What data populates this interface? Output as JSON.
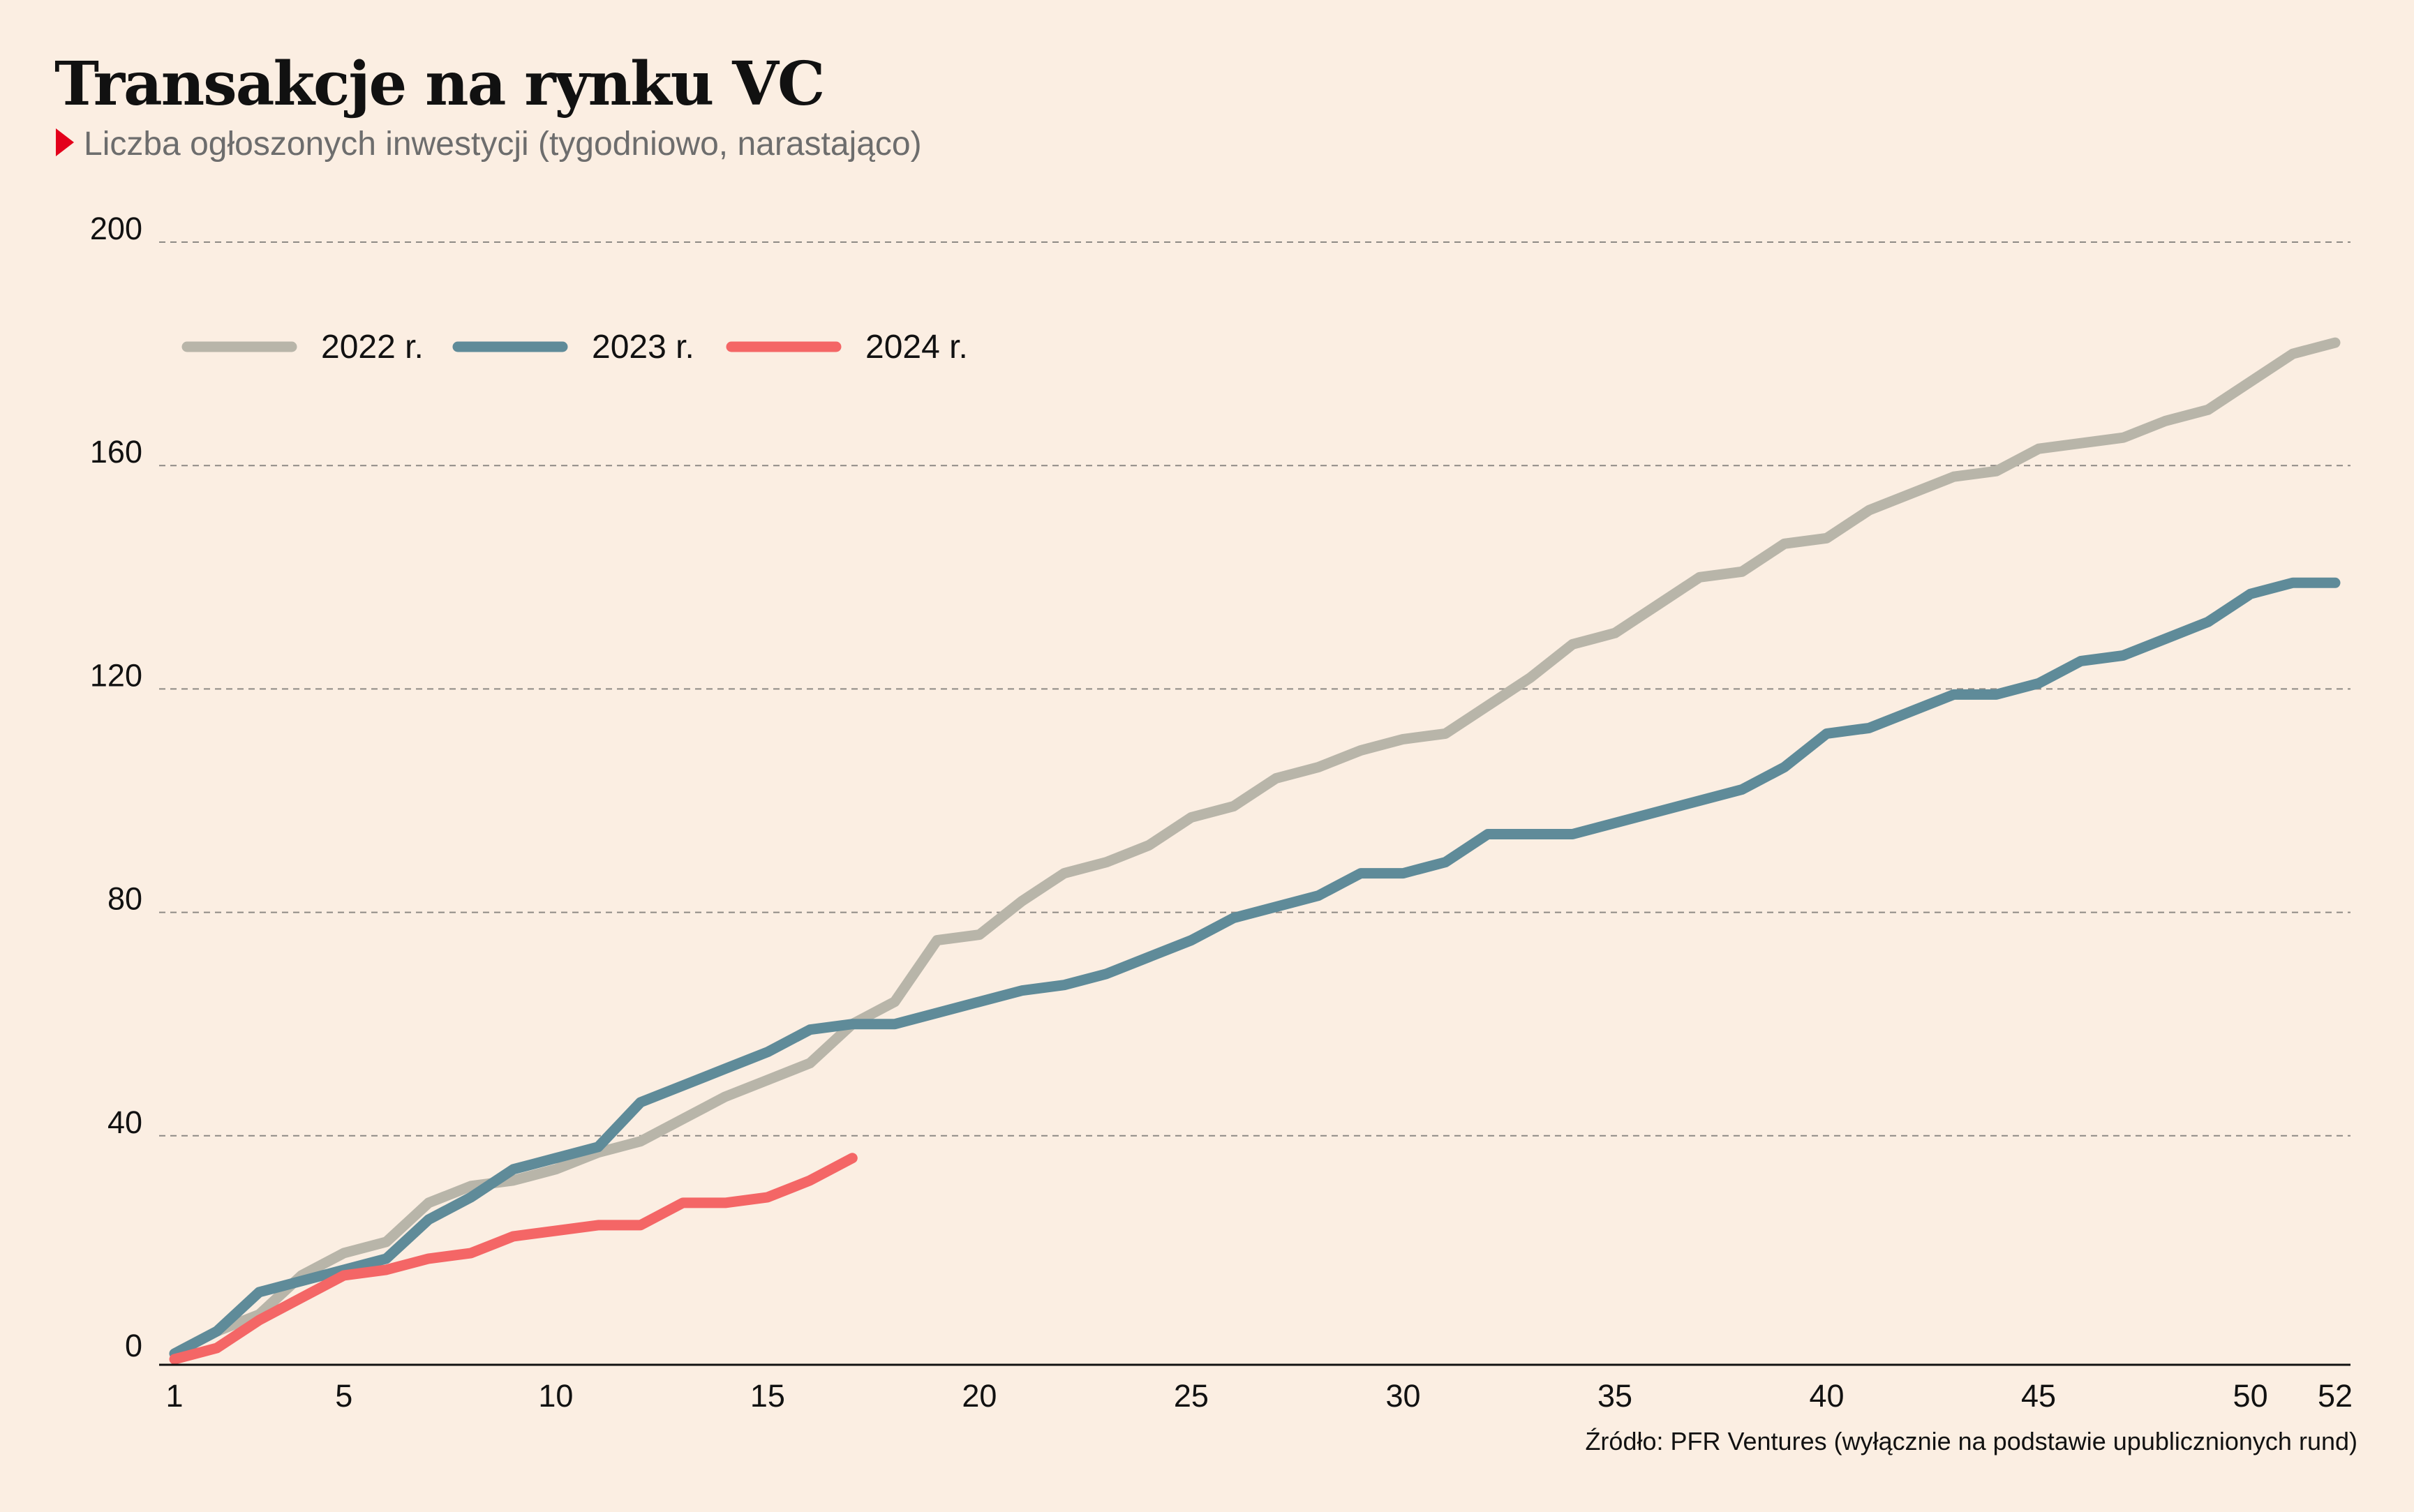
{
  "header": {
    "title": "Transakcje na rynku VC",
    "subtitle": "Liczba ogłoszonych inwestycji (tygodniowo, narastająco)"
  },
  "source": "Źródło: PFR Ventures (wyłącznie na podstawie upublicznionych rund)",
  "colors": {
    "background": "#fbeee2",
    "accent": "#e3001b",
    "series_2022": "#b8b5a9",
    "series_2023": "#5f8b99",
    "series_2024": "#f46666"
  },
  "chart_data": {
    "type": "line",
    "title": "Transakcje na rynku VC",
    "subtitle": "Liczba ogłoszonych inwestycji (tygodniowo, narastająco)",
    "xlim": [
      1,
      52
    ],
    "ylim": [
      0,
      200
    ],
    "x_ticks": [
      1,
      5,
      10,
      15,
      20,
      25,
      30,
      35,
      40,
      45,
      50,
      52
    ],
    "y_ticks": [
      0,
      40,
      80,
      120,
      160,
      200
    ],
    "grid": true,
    "legend_position": "top-left",
    "series": [
      {
        "name": "2022 r.",
        "color": "#b8b5a9",
        "x": [
          1,
          2,
          3,
          4,
          5,
          6,
          7,
          8,
          9,
          10,
          11,
          12,
          13,
          14,
          15,
          16,
          17,
          18,
          19,
          20,
          21,
          22,
          23,
          24,
          25,
          26,
          27,
          28,
          29,
          30,
          31,
          32,
          33,
          34,
          35,
          36,
          37,
          38,
          39,
          40,
          41,
          42,
          43,
          44,
          45,
          46,
          47,
          48,
          49,
          50,
          51,
          52
        ],
        "values": [
          1,
          5,
          8,
          15,
          19,
          21,
          28,
          31,
          32,
          34,
          37,
          39,
          43,
          47,
          50,
          53,
          60,
          64,
          75,
          76,
          82,
          87,
          89,
          92,
          97,
          99,
          104,
          106,
          109,
          111,
          112,
          117,
          122,
          128,
          130,
          135,
          140,
          141,
          146,
          147,
          152,
          155,
          158,
          159,
          163,
          164,
          165,
          168,
          170,
          175,
          180,
          182
        ]
      },
      {
        "name": "2023 r.",
        "color": "#5f8b99",
        "x": [
          1,
          2,
          3,
          4,
          5,
          6,
          7,
          8,
          9,
          10,
          11,
          12,
          13,
          14,
          15,
          16,
          17,
          18,
          19,
          20,
          21,
          22,
          23,
          24,
          25,
          26,
          27,
          28,
          29,
          30,
          31,
          32,
          33,
          34,
          35,
          36,
          37,
          38,
          39,
          40,
          41,
          42,
          43,
          44,
          45,
          46,
          47,
          48,
          49,
          50,
          51,
          52
        ],
        "values": [
          1,
          5,
          12,
          14,
          16,
          18,
          25,
          29,
          34,
          36,
          38,
          46,
          49,
          52,
          55,
          59,
          60,
          60,
          62,
          64,
          66,
          67,
          69,
          72,
          75,
          79,
          81,
          83,
          87,
          87,
          89,
          94,
          94,
          94,
          96,
          98,
          100,
          102,
          106,
          112,
          113,
          116,
          119,
          119,
          121,
          125,
          126,
          129,
          132,
          137,
          139,
          139
        ]
      },
      {
        "name": "2024 r.",
        "color": "#f46666",
        "x": [
          1,
          2,
          3,
          4,
          5,
          6,
          7,
          8,
          9,
          10,
          11,
          12,
          13,
          14,
          15,
          16,
          17
        ],
        "values": [
          0,
          2,
          7,
          11,
          15,
          16,
          18,
          19,
          22,
          23,
          24,
          24,
          28,
          28,
          29,
          32,
          36
        ]
      }
    ]
  }
}
